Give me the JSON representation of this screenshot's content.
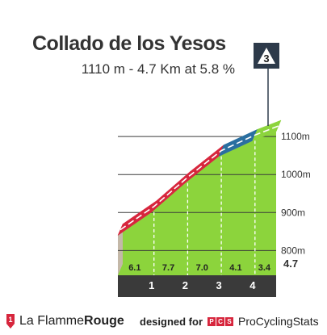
{
  "header": {
    "title": "Collado de los Yesos",
    "subtitle": "1110 m - 4.7 Km at 5.8 %"
  },
  "category_badge": {
    "label": "3",
    "color": "#2d3a4a"
  },
  "chart_data": {
    "type": "area",
    "title": "Collado de los Yesos",
    "subtitle": "1110 m - 4.7 Km at 5.8 %",
    "xlabel": "",
    "ylabel": "",
    "x_unit": "km",
    "xlim": [
      0,
      4.7
    ],
    "ylim": [
      735,
      1130
    ],
    "grid": true,
    "profile": [
      {
        "x": 0,
        "y": 840
      },
      {
        "x": 1,
        "y": 901
      },
      {
        "x": 2,
        "y": 978
      },
      {
        "x": 3,
        "y": 1048
      },
      {
        "x": 4,
        "y": 1089
      },
      {
        "x": 4.7,
        "y": 1113
      }
    ],
    "segments": [
      {
        "from": 0,
        "to": 1,
        "gradient": "6.1",
        "color": "#d7263d"
      },
      {
        "from": 1,
        "to": 2,
        "gradient": "7.7",
        "color": "#d7263d"
      },
      {
        "from": 2,
        "to": 3,
        "gradient": "7.0",
        "color": "#d7263d"
      },
      {
        "from": 3,
        "to": 4,
        "gradient": "4.1",
        "color": "#2a6fa0"
      },
      {
        "from": 4,
        "to": 4.7,
        "gradient": "3.4",
        "color": "#8cd43c"
      }
    ],
    "km_markers": [
      "1",
      "2",
      "3",
      "4"
    ],
    "end_label": "4.7",
    "altitude_labels": [
      {
        "value": 800,
        "label": "800m"
      },
      {
        "value": 900,
        "label": "900m"
      },
      {
        "value": 1000,
        "label": "1000m"
      },
      {
        "value": 1100,
        "label": "1100m"
      }
    ],
    "colors": {
      "body": "#8cd43c",
      "start_wall": "#c4b8a8",
      "base": "#3a3a3a",
      "steep": "#d7263d",
      "moderate": "#2a6fa0",
      "easy": "#8cd43c"
    }
  },
  "footer": {
    "brand_prefix": "La Flamme",
    "brand_suffix": "Rouge",
    "designed_for": "designed for",
    "pcs_letters": [
      "P",
      "C",
      "S"
    ],
    "pcs_name": "ProCyclingStats"
  }
}
